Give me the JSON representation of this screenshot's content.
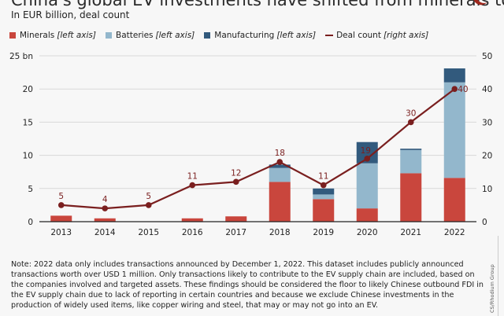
{
  "header": {
    "title": "China's global EV investments have shifted from minerals to batteries",
    "subtitle": "In EUR billion, deal count"
  },
  "legend": [
    {
      "label": "Minerals",
      "axis_note": "[left axis]",
      "color": "#c9463d",
      "kind": "bar"
    },
    {
      "label": "Batteries",
      "axis_note": "[left axis]",
      "color": "#93b7cc",
      "kind": "bar"
    },
    {
      "label": "Manufacturing",
      "axis_note": "[left axis]",
      "color": "#325a7d",
      "kind": "bar"
    },
    {
      "label": "Deal count",
      "axis_note": "[right axis]",
      "color": "#7a1f1f",
      "kind": "line"
    }
  ],
  "chart_data": {
    "type": "bar",
    "stacked": true,
    "title": "China's global EV investments have shifted from minerals to batteries",
    "subtitle": "In EUR billion, deal count",
    "categories": [
      "2013",
      "2014",
      "2015",
      "2016",
      "2017",
      "2018",
      "2019",
      "2020",
      "2021",
      "2022"
    ],
    "series": [
      {
        "name": "Minerals",
        "axis": "left",
        "type": "bar",
        "color": "#c9463d",
        "values": [
          0.9,
          0.5,
          0,
          0.5,
          0.8,
          6.0,
          3.4,
          2.0,
          7.3,
          6.6
        ]
      },
      {
        "name": "Batteries",
        "axis": "left",
        "type": "bar",
        "color": "#93b7cc",
        "values": [
          0,
          0,
          0,
          0,
          0,
          2.1,
          0.7,
          6.8,
          3.5,
          14.4
        ]
      },
      {
        "name": "Manufacturing",
        "axis": "left",
        "type": "bar",
        "color": "#325a7d",
        "values": [
          0,
          0,
          0,
          0,
          0,
          0.5,
          0.9,
          3.2,
          0.2,
          2.1
        ]
      },
      {
        "name": "Deal count",
        "axis": "right",
        "type": "line",
        "color": "#7a1f1f",
        "values": [
          5,
          4,
          5,
          11,
          12,
          18,
          11,
          19,
          30,
          40
        ],
        "data_labels": [
          "5",
          "4",
          "5",
          "11",
          "12",
          "18",
          "11",
          "19",
          "30",
          "40"
        ]
      }
    ],
    "left_axis": {
      "ylim": [
        0,
        25
      ],
      "ticks": [
        0,
        5,
        10,
        15,
        20,
        25
      ],
      "tick_labels": [
        "0",
        "5",
        "10",
        "15",
        "20",
        "25 bn"
      ]
    },
    "right_axis": {
      "ylim": [
        0,
        50
      ],
      "ticks": [
        0,
        10,
        20,
        30,
        40,
        50
      ],
      "tick_labels": [
        "0",
        "10",
        "20",
        "30",
        "40",
        "50"
      ]
    },
    "xlabel": "",
    "ylabel": "",
    "grid": true,
    "legend_position": "top-left"
  },
  "footer": {
    "note": "Note: 2022 data only includes transactions announced by December 1, 2022. This dataset includes publicly announced transactions worth over USD 1 million. Only transactions likely to contribute to the EV supply chain are included, based on the companies involved and targeted assets. These findings should be considered the floor to likely Chinese outbound FDI in the EV supply chain due to lack of reporting in certain countries and because we exclude Chinese investments in the production of widely used items, like copper wiring and steel, that may or may not go into an EV.",
    "source": "CS/Rhodium Group"
  }
}
